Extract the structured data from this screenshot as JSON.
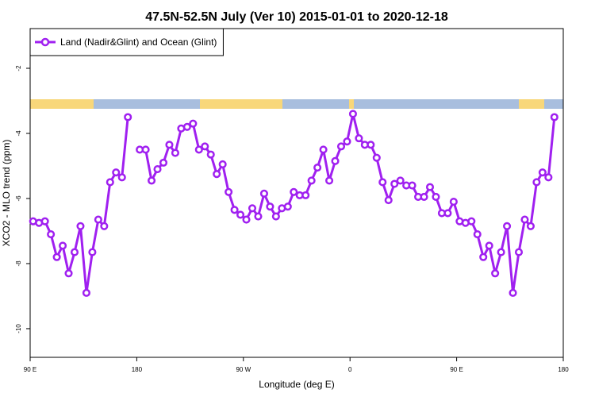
{
  "chart_data": {
    "type": "line",
    "title": "47.5N-52.5N July (Ver 10)   2015-01-01 to 2020-12-18",
    "x_label": "Longitude (deg E)",
    "y_label": "XCO2 - MLO trend (ppm)",
    "x": [
      92.5,
      97.5,
      102.5,
      107.5,
      112.5,
      117.5,
      122.5,
      127.5,
      132.5,
      137.5,
      142.5,
      147.5,
      152.5,
      157.5,
      162.5,
      167.5,
      172.5,
      177.5,
      182.5,
      187.5,
      192.5,
      197.5,
      202.5,
      207.5,
      212.5,
      217.5,
      222.5,
      227.5,
      232.5,
      237.5,
      242.5,
      247.5,
      252.5,
      257.5,
      262.5,
      267.5,
      272.5,
      277.5,
      282.5,
      287.5,
      292.5,
      297.5,
      302.5,
      307.5,
      312.5,
      317.5,
      322.5,
      327.5,
      332.5,
      337.5,
      342.5,
      347.5,
      352.5,
      357.5,
      362.5,
      367.5,
      372.5,
      377.5,
      382.5,
      387.5,
      392.5,
      397.5,
      402.5,
      407.5,
      412.5,
      417.5,
      422.5,
      427.5,
      432.5,
      437.5,
      442.5,
      447.5,
      452.5,
      457.5,
      462.5,
      467.5,
      472.5,
      477.5,
      482.5,
      487.5,
      492.5,
      497.5,
      502.5,
      507.5,
      512.5,
      517.5,
      522.5,
      527.5,
      532.5
    ],
    "series": [
      {
        "name": "Land (Nadir&Glint) and Ocean (Glint)",
        "color": "#a020f0",
        "values": [
          -6.7,
          -6.75,
          -6.7,
          -7.1,
          -7.8,
          -7.45,
          -8.3,
          -7.65,
          -6.85,
          -8.9,
          -7.65,
          -6.65,
          -6.85,
          -5.5,
          -5.2,
          -5.35,
          -3.5,
          null,
          -4.5,
          -4.5,
          -5.45,
          -5.1,
          -4.9,
          -4.35,
          -4.6,
          -3.85,
          -3.8,
          -3.7,
          -4.5,
          -4.4,
          -4.65,
          -5.25,
          -4.95,
          -5.8,
          -6.35,
          -6.5,
          -6.65,
          -6.3,
          -6.55,
          -5.85,
          -6.25,
          -6.55,
          -6.3,
          -6.25,
          -5.8,
          -5.9,
          -5.9,
          -5.45,
          -5.05,
          -4.5,
          -5.45,
          -4.85,
          -4.4,
          -4.25,
          -3.4,
          -4.15,
          -4.35,
          -4.35,
          -4.75,
          -5.5,
          -6.05,
          -5.55,
          -5.45,
          -5.6,
          -5.6,
          -5.95,
          -5.95,
          -5.65,
          -5.95,
          -6.45,
          -6.45,
          -6.1,
          -6.7,
          -6.75,
          -6.7,
          -7.1,
          -7.8,
          -7.45,
          -8.3,
          -7.65,
          -6.85,
          -8.9,
          -7.65,
          -6.65,
          -6.85,
          -5.5,
          -5.2,
          -5.35,
          -3.5
        ]
      }
    ],
    "xlim": [
      90,
      540
    ],
    "xticks": [
      {
        "value": 90,
        "label": "90 E"
      },
      180,
      {
        "value": 270,
        "label": "90 W"
      },
      {
        "value": 360,
        "label": "0"
      },
      {
        "value": 450,
        "label": "90 E"
      },
      {
        "value": 540,
        "label": "180"
      }
    ],
    "ylim": [
      -10.88,
      -0.78
    ],
    "yticks": [
      -10,
      -8,
      -6,
      -4,
      -2
    ],
    "legend": "top-left"
  }
}
